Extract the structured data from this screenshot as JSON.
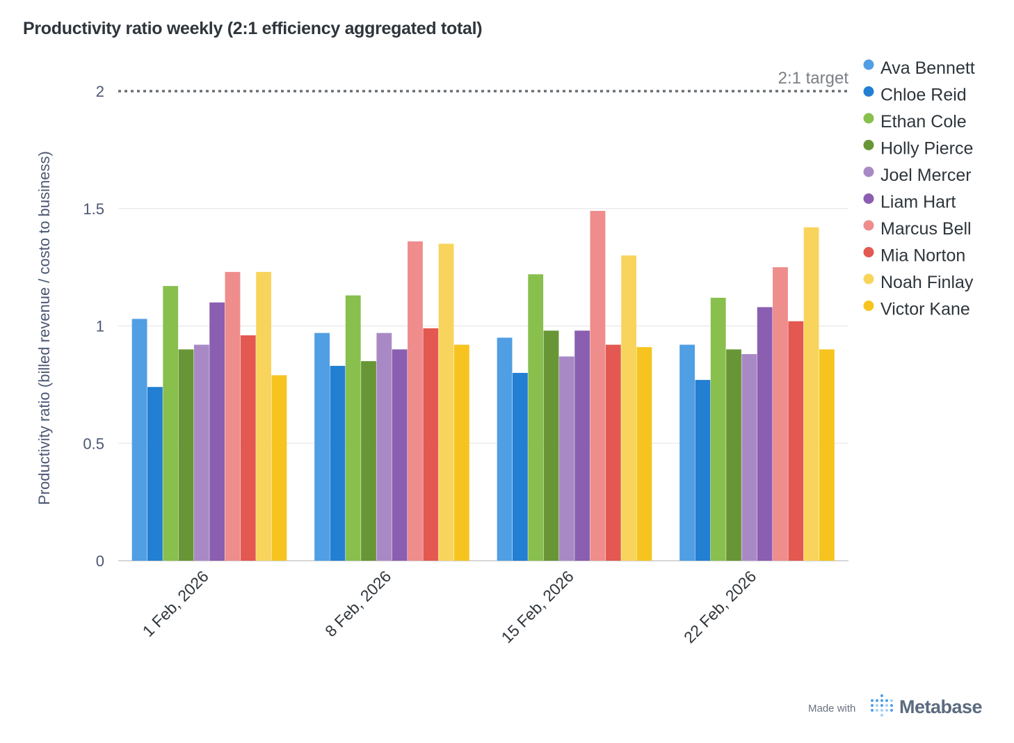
{
  "chart_data": {
    "type": "bar",
    "title": "Productivity ratio weekly (2:1 efficiency aggregated total)",
    "ylabel": "Productivity ratio  (billed revenue / costo to business)",
    "xlabel": "",
    "ylim": [
      0,
      2
    ],
    "yticks": [
      "0",
      "0.5",
      "1",
      "1.5",
      "2"
    ],
    "grid": true,
    "legend_position": "right",
    "categories": [
      "1 Feb, 2026",
      "8 Feb, 2026",
      "15 Feb, 2026",
      "22 Feb, 2026"
    ],
    "reference_line": {
      "value": 2,
      "label": "2:1 target",
      "style": "dotted"
    },
    "series": [
      {
        "name": "Ava Bennett",
        "color": "#509EE3",
        "values": [
          1.03,
          0.97,
          0.95,
          0.92
        ]
      },
      {
        "name": "Chloe Reid",
        "color": "#227FD2",
        "values": [
          0.74,
          0.83,
          0.8,
          0.77
        ]
      },
      {
        "name": "Ethan Cole",
        "color": "#88BF4D",
        "values": [
          1.17,
          1.13,
          1.22,
          1.12
        ]
      },
      {
        "name": "Holly Pierce",
        "color": "#689636",
        "values": [
          0.9,
          0.85,
          0.98,
          0.9
        ]
      },
      {
        "name": "Joel Mercer",
        "color": "#A989C5",
        "values": [
          0.92,
          0.97,
          0.87,
          0.88
        ]
      },
      {
        "name": "Liam Hart",
        "color": "#8A5EB0",
        "values": [
          1.1,
          0.9,
          0.98,
          1.08
        ]
      },
      {
        "name": "Marcus Bell",
        "color": "#EF8C8C",
        "values": [
          1.23,
          1.36,
          1.49,
          1.25
        ]
      },
      {
        "name": "Mia Norton",
        "color": "#E35850",
        "values": [
          0.96,
          0.99,
          0.92,
          1.02
        ]
      },
      {
        "name": "Noah Finlay",
        "color": "#F9D45C",
        "values": [
          1.23,
          1.35,
          1.3,
          1.42
        ]
      },
      {
        "name": "Victor Kane",
        "color": "#F7C41F",
        "values": [
          0.79,
          0.92,
          0.91,
          0.9
        ]
      }
    ]
  },
  "footer": {
    "made_with": "Made with",
    "brand": "Metabase"
  }
}
